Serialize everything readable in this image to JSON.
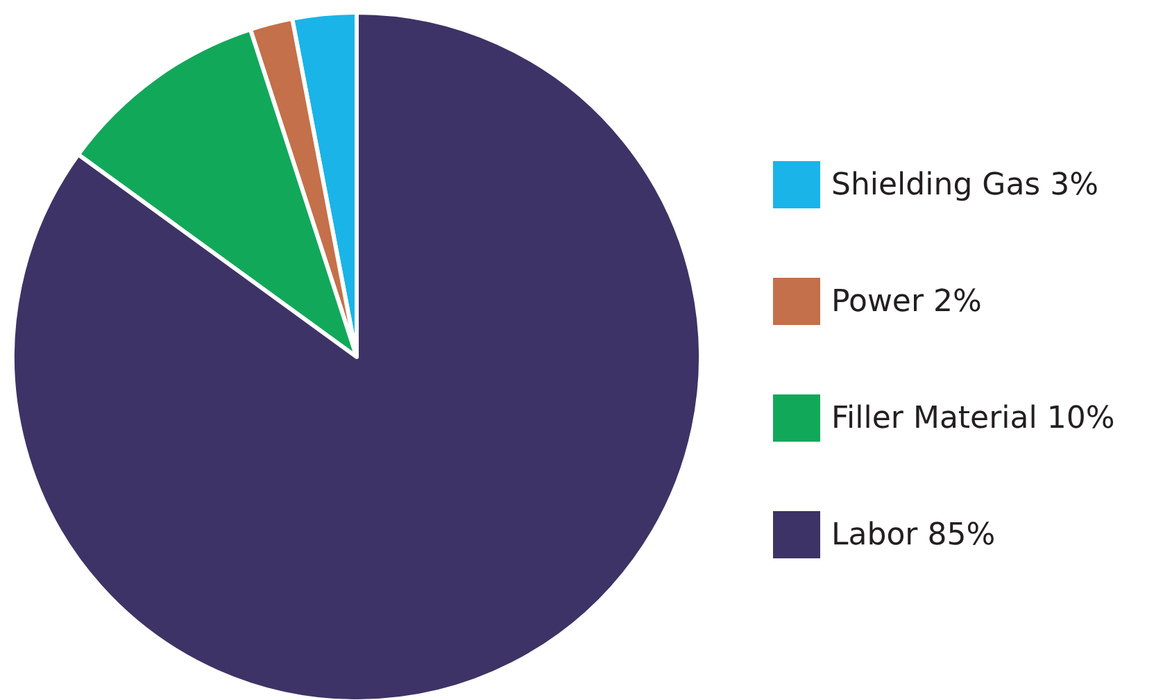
{
  "chart_data": {
    "type": "pie",
    "categories": [
      "Shielding Gas 3%",
      "Power 2%",
      "Filler Material 10%",
      "Labor 85%"
    ],
    "values": [
      3,
      2,
      10,
      85
    ],
    "colors": [
      "#1ab4e8",
      "#c4704a",
      "#12a85a",
      "#3e3366"
    ],
    "legend": "right"
  }
}
